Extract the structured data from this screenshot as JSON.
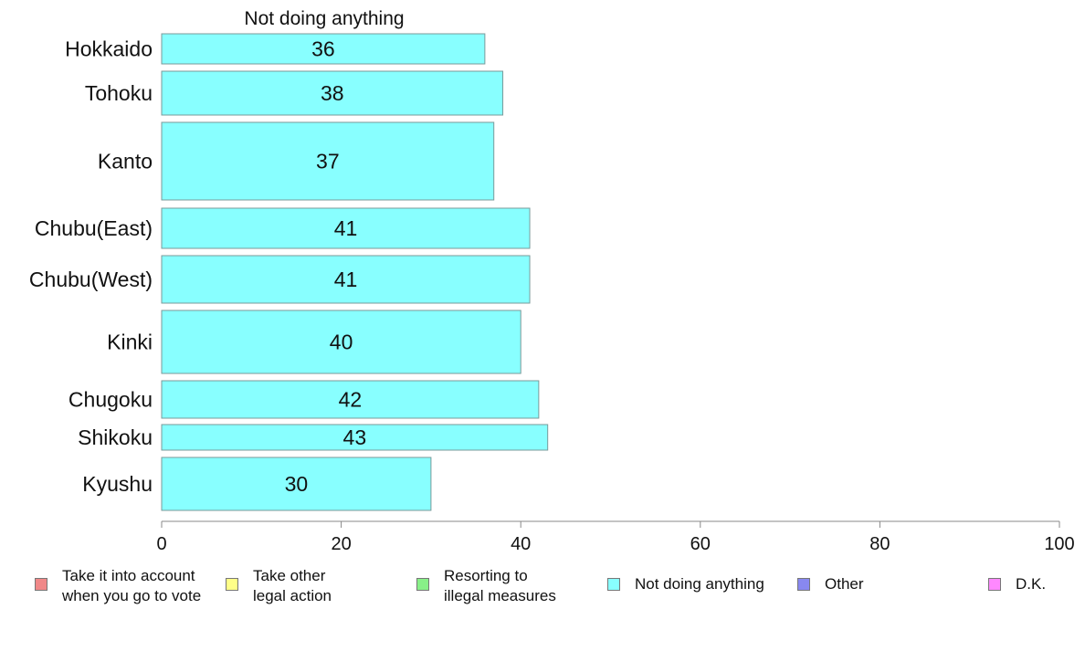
{
  "chart_data": {
    "type": "bar",
    "orientation": "horizontal",
    "title": "Not doing anything",
    "categories": [
      "Hokkaido",
      "Tohoku",
      "Kanto",
      "Chubu(East)",
      "Chubu(West)",
      "Kinki",
      "Chugoku",
      "Shikoku",
      "Kyushu"
    ],
    "series": [
      {
        "name": "Not doing anything",
        "color": "#88ffff",
        "values": [
          36,
          38,
          37,
          41,
          41,
          40,
          42,
          43,
          30
        ],
        "labels": [
          "36",
          "38",
          "37",
          "41",
          "41",
          "40",
          "42",
          "43",
          "30"
        ]
      }
    ],
    "xlim": [
      0,
      100
    ],
    "xticks": [
      "0",
      "20",
      "40",
      "60",
      "80",
      "100"
    ],
    "grid": false,
    "legend_placement": "bottom",
    "legend": [
      {
        "label": "Take it into account\nwhen you go to vote",
        "color": "#f08888"
      },
      {
        "label": "Take other\nlegal action",
        "color": "#ffff88"
      },
      {
        "label": "Resorting to\nillegal measures",
        "color": "#88f088"
      },
      {
        "label": "Not doing anything",
        "color": "#88ffff"
      },
      {
        "label": "Other",
        "color": "#8888f0"
      },
      {
        "label": "D.K.",
        "color": "#ff88ff"
      }
    ]
  }
}
